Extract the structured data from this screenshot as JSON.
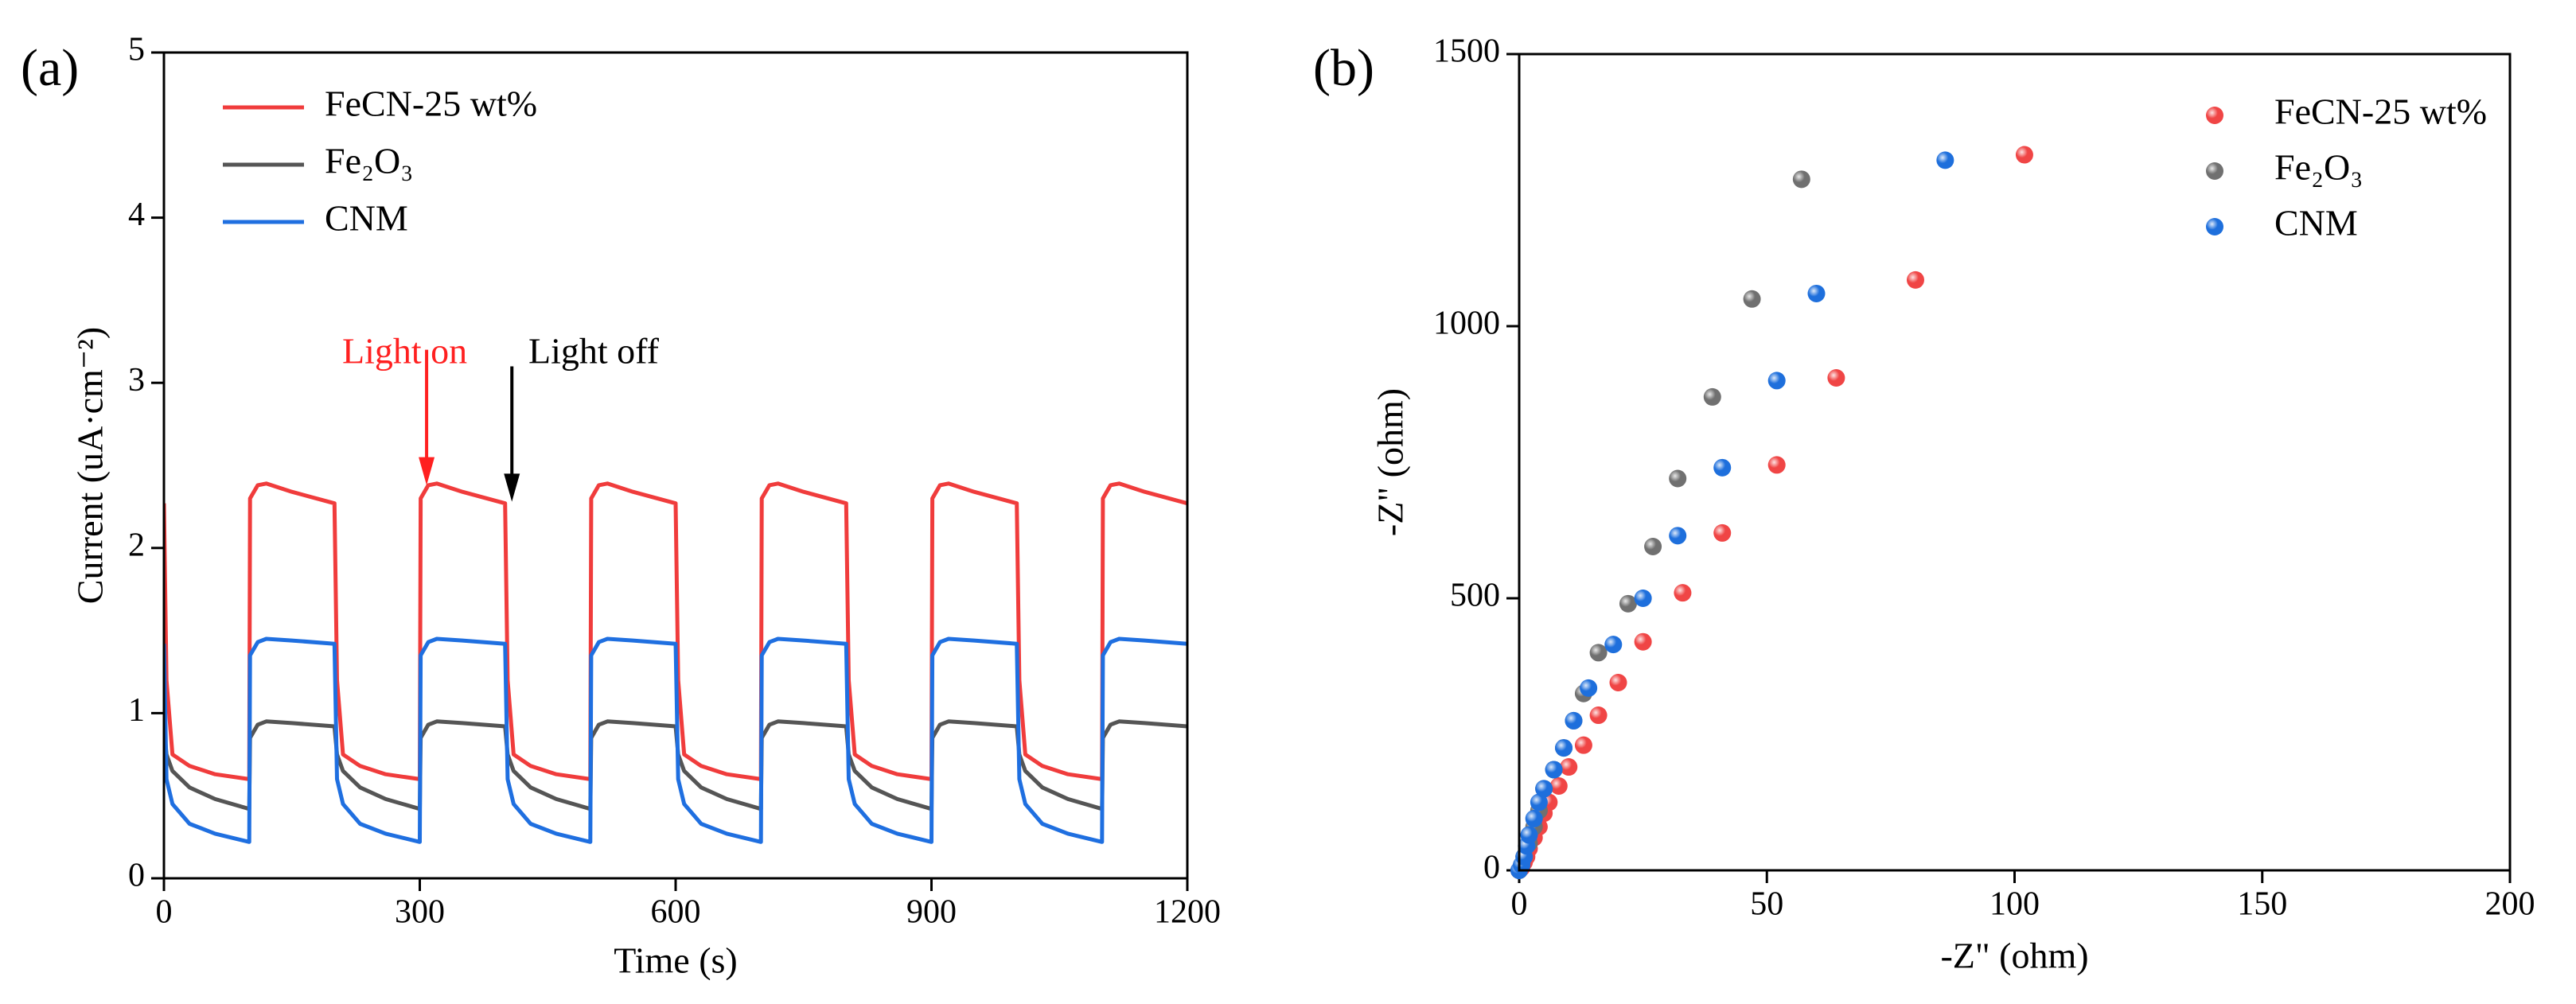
{
  "chart_data": [
    {
      "type": "line",
      "panel_label": "(a)",
      "xlabel": "Time (s)",
      "ylabel": "Current (uA·cm⁻²)",
      "xlim": [
        0,
        1200
      ],
      "ylim": [
        0,
        5
      ],
      "xticks": [
        0,
        300,
        600,
        900,
        1200
      ],
      "yticks": [
        0,
        1,
        2,
        3,
        4,
        5
      ],
      "legend": "upper left",
      "annotations": [
        {
          "text": "Light on",
          "color": "#ff2020"
        },
        {
          "text": "Light off",
          "color": "#000000"
        }
      ],
      "x": [
        0,
        3,
        10,
        30,
        60,
        100,
        101,
        110,
        120,
        150,
        200,
        203,
        210,
        230,
        260,
        300,
        301,
        310,
        320,
        350,
        400,
        403,
        410,
        430,
        460,
        500,
        501,
        510,
        520,
        550,
        600,
        603,
        610,
        630,
        660,
        700,
        701,
        710,
        720,
        750,
        800,
        803,
        810,
        830,
        860,
        900,
        901,
        910,
        920,
        950,
        1000,
        1003,
        1010,
        1030,
        1060,
        1100,
        1101,
        1110,
        1120,
        1150,
        1200
      ],
      "series": [
        {
          "name": "FeCN-25 wt%",
          "color": "#f03c3c",
          "values": [
            2.27,
            1.2,
            0.75,
            0.68,
            0.63,
            0.6,
            2.3,
            2.38,
            2.39,
            2.34,
            2.27,
            1.2,
            0.75,
            0.68,
            0.63,
            0.6,
            2.3,
            2.38,
            2.39,
            2.34,
            2.27,
            1.2,
            0.75,
            0.68,
            0.63,
            0.6,
            2.3,
            2.38,
            2.39,
            2.34,
            2.27,
            1.2,
            0.75,
            0.68,
            0.63,
            0.6,
            2.3,
            2.38,
            2.39,
            2.34,
            2.27,
            1.2,
            0.75,
            0.68,
            0.63,
            0.6,
            2.3,
            2.38,
            2.39,
            2.34,
            2.27,
            1.2,
            0.75,
            0.68,
            0.63,
            0.6,
            2.3,
            2.38,
            2.39,
            2.34,
            2.27
          ]
        },
        {
          "name": "Fe₂O₃",
          "color": "#555555",
          "values": [
            0.92,
            0.75,
            0.65,
            0.55,
            0.48,
            0.42,
            0.85,
            0.93,
            0.95,
            0.94,
            0.92,
            0.75,
            0.65,
            0.55,
            0.48,
            0.42,
            0.85,
            0.93,
            0.95,
            0.94,
            0.92,
            0.75,
            0.65,
            0.55,
            0.48,
            0.42,
            0.85,
            0.93,
            0.95,
            0.94,
            0.92,
            0.75,
            0.65,
            0.55,
            0.48,
            0.42,
            0.85,
            0.93,
            0.95,
            0.94,
            0.92,
            0.75,
            0.65,
            0.55,
            0.48,
            0.42,
            0.85,
            0.93,
            0.95,
            0.94,
            0.92,
            0.75,
            0.65,
            0.55,
            0.48,
            0.42,
            0.85,
            0.93,
            0.95,
            0.94,
            0.92
          ]
        },
        {
          "name": "CNM",
          "color": "#1f6fe0",
          "values": [
            1.42,
            0.6,
            0.45,
            0.33,
            0.27,
            0.22,
            1.35,
            1.43,
            1.45,
            1.44,
            1.42,
            0.6,
            0.45,
            0.33,
            0.27,
            0.22,
            1.35,
            1.43,
            1.45,
            1.44,
            1.42,
            0.6,
            0.45,
            0.33,
            0.27,
            0.22,
            1.35,
            1.43,
            1.45,
            1.44,
            1.42,
            0.6,
            0.45,
            0.33,
            0.27,
            0.22,
            1.35,
            1.43,
            1.45,
            1.44,
            1.42,
            0.6,
            0.45,
            0.33,
            0.27,
            0.22,
            1.35,
            1.43,
            1.45,
            1.44,
            1.42,
            0.6,
            0.45,
            0.33,
            0.27,
            0.22,
            1.35,
            1.43,
            1.45,
            1.44,
            1.42
          ]
        }
      ]
    },
    {
      "type": "scatter",
      "panel_label": "(b)",
      "xlabel": "-Z\" (ohm)",
      "ylabel": "-Z\" (ohm)",
      "xlim": [
        0,
        200
      ],
      "ylim": [
        0,
        1500
      ],
      "xticks": [
        0,
        50,
        100,
        150,
        200
      ],
      "yticks": [
        0,
        500,
        1000,
        1500
      ],
      "legend": "upper right",
      "series": [
        {
          "name": "FeCN-25 wt%",
          "color": "#f04545",
          "x": [
            0,
            0.5,
            1,
            1.5,
            2,
            3,
            4,
            5,
            6,
            8,
            10,
            13,
            16,
            20,
            25,
            33,
            41,
            52,
            64,
            80,
            102
          ],
          "values": [
            0,
            5,
            15,
            25,
            40,
            60,
            80,
            105,
            125,
            155,
            190,
            230,
            285,
            345,
            420,
            510,
            620,
            745,
            905,
            1085,
            1315
          ]
        },
        {
          "name": "Fe₂O₃",
          "color": "#707070",
          "x": [
            0,
            0.5,
            1,
            2,
            3,
            4,
            5,
            7,
            9,
            11,
            13,
            16,
            22,
            27,
            32,
            39,
            47,
            57
          ],
          "values": [
            0,
            10,
            25,
            50,
            80,
            110,
            150,
            185,
            225,
            275,
            325,
            400,
            490,
            595,
            720,
            870,
            1050,
            1270
          ]
        },
        {
          "name": "CNM",
          "color": "#1e6fdc",
          "x": [
            0,
            0.5,
            1,
            1.5,
            2,
            3,
            4,
            5,
            7,
            9,
            11,
            14,
            19,
            25,
            32,
            41,
            52,
            60,
            86
          ],
          "values": [
            0,
            10,
            25,
            45,
            65,
            95,
            125,
            150,
            185,
            225,
            275,
            335,
            415,
            500,
            615,
            740,
            900,
            1060,
            1305
          ]
        }
      ]
    }
  ]
}
